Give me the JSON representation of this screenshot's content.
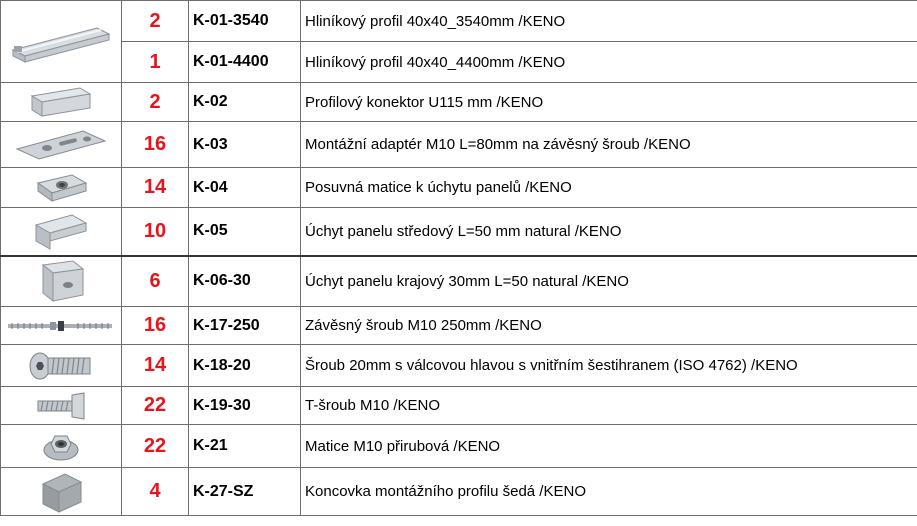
{
  "items": [
    {
      "qty": "2",
      "code": "K-01-3540",
      "desc": "Hliníkový profil 40x40_3540mm /KENO",
      "icon": "aluminium-profile-icon"
    },
    {
      "qty": "1",
      "code": "K-01-4400",
      "desc": "Hliníkový profil 40x40_4400mm /KENO",
      "icon": "aluminium-profile-icon"
    },
    {
      "qty": "2",
      "code": "K-02",
      "desc": "Profilový konektor U115 mm /KENO",
      "icon": "u-connector-icon"
    },
    {
      "qty": "16",
      "code": "K-03",
      "desc": "Montážní adaptér M10 L=80mm na závěsný šroub /KENO",
      "icon": "mounting-adapter-plate-icon"
    },
    {
      "qty": "14",
      "code": "K-04",
      "desc": "Posuvná matice k úchytu panelů /KENO",
      "icon": "sliding-nut-icon"
    },
    {
      "qty": "10",
      "code": "K-05",
      "desc": "Úchyt panelu středový L=50 mm natural /KENO",
      "icon": "mid-clamp-icon"
    },
    {
      "qty": "6",
      "code": "K-06-30",
      "desc": "Úchyt panelu krajový 30mm L=50 natural /KENO",
      "icon": "end-clamp-icon"
    },
    {
      "qty": "16",
      "code": "K-17-250",
      "desc": "Závěsný šroub M10 250mm /KENO",
      "icon": "hanger-bolt-icon"
    },
    {
      "qty": "14",
      "code": "K-18-20",
      "desc": "Šroub 20mm s válcovou hlavou s vnitřním šestihranem (ISO 4762) /KENO",
      "icon": "socket-head-screw-icon"
    },
    {
      "qty": "22",
      "code": "K-19-30",
      "desc": "T-šroub M10 /KENO",
      "icon": "t-bolt-icon"
    },
    {
      "qty": "22",
      "code": "K-21",
      "desc": "Matice M10 přirubová /KENO",
      "icon": "flange-nut-icon"
    },
    {
      "qty": "4",
      "code": "K-27-SZ",
      "desc": "Koncovka montážního profilu šedá /KENO",
      "icon": "end-cap-icon"
    }
  ],
  "colors": {
    "quantity": "#e8141b",
    "border": "#6e6e6e"
  }
}
